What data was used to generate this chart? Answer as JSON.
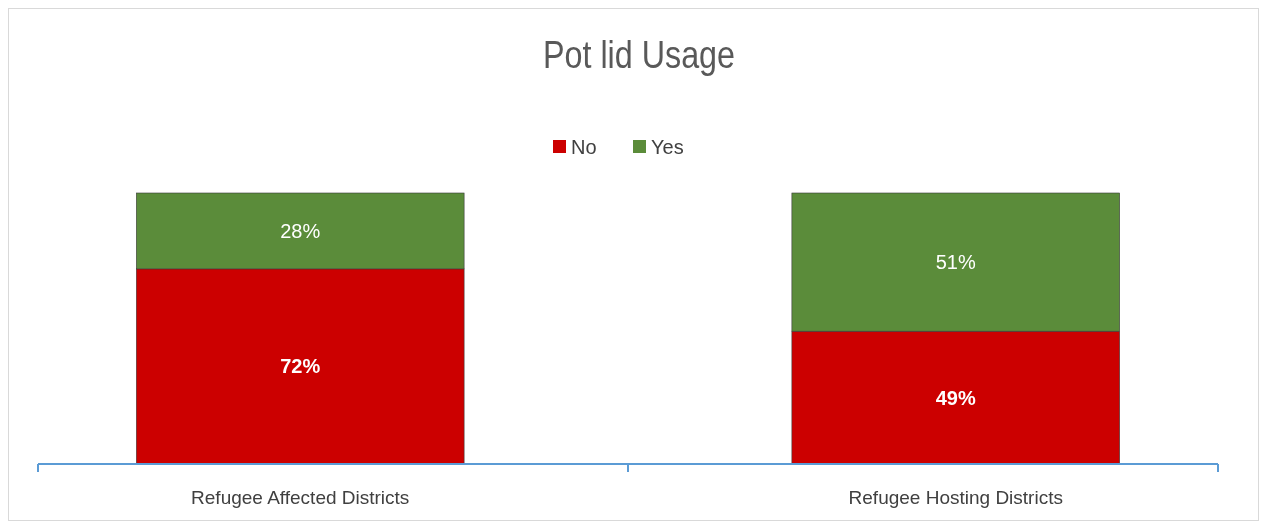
{
  "chart_data": {
    "type": "bar",
    "title": "Pot lid Usage",
    "stacked": true,
    "legend": "top",
    "categories": [
      "Refugee Affected Districts",
      "Refugee Hosting Districts"
    ],
    "series": [
      {
        "name": "No",
        "color": "#cc0000",
        "values": [
          72,
          49
        ],
        "value_labels": [
          "72%",
          "49%"
        ]
      },
      {
        "name": "Yes",
        "color": "#5b8c3a",
        "values": [
          28,
          51
        ],
        "value_labels": [
          "28%",
          "51%"
        ]
      }
    ]
  }
}
